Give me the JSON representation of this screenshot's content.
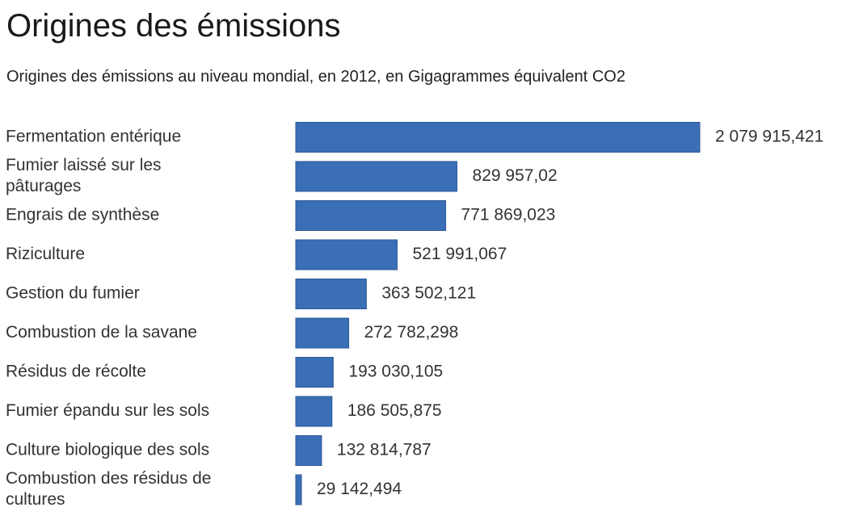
{
  "header": {
    "title": "Origines des émissions",
    "subtitle": "Origines des émissions au niveau mondial, en 2012, en Gigagrammes équivalent CO2"
  },
  "chart_data": {
    "type": "bar",
    "orientation": "horizontal",
    "title": "Origines des émissions",
    "subtitle": "Origines des émissions au niveau mondial, en 2012, en Gigagrammes équivalent CO2",
    "bar_color": "#3a6eb5",
    "grid": false,
    "categories": [
      [
        "Fermentation entérique"
      ],
      [
        "Fumier laissé sur les",
        "pâturages"
      ],
      [
        "Engrais de synthèse"
      ],
      [
        "Riziculture"
      ],
      [
        "Gestion du fumier"
      ],
      [
        "Combustion de la savane"
      ],
      [
        "Résidus de récolte"
      ],
      [
        "Fumier épandu sur les sols"
      ],
      [
        "Culture biologique des sols"
      ],
      [
        "Combustion des résidus de",
        "cultures"
      ]
    ],
    "values": [
      2079915.421,
      829957.02,
      771869.023,
      521991.067,
      363502.121,
      272782.298,
      193030.105,
      186505.875,
      132814.787,
      29142.494
    ],
    "value_labels": [
      "2 079 915,421",
      "829 957,02",
      "771 869,023",
      "521 991,067",
      "363 502,121",
      "272 782,298",
      "193 030,105",
      "186 505,875",
      "132 814,787",
      "29 142,494"
    ]
  }
}
